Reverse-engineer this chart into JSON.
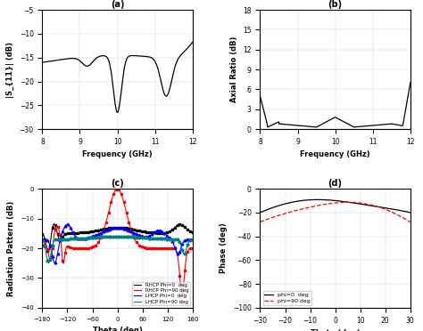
{
  "fig_background": "#ffffff",
  "panel_a": {
    "title": "(a)",
    "xlabel": "Frequency (GHz)",
    "ylabel": "|S_{11}| (dB)",
    "xlim": [
      8,
      12
    ],
    "ylim": [
      -30,
      -5
    ],
    "yticks": [
      -30,
      -25,
      -20,
      -15,
      -10,
      -5
    ],
    "xticks": [
      8,
      9,
      10,
      11,
      12
    ]
  },
  "panel_b": {
    "title": "(b)",
    "xlabel": "Frequency (GHz)",
    "ylabel": "Axial Ratio (dB)",
    "xlim": [
      8,
      12
    ],
    "ylim": [
      0,
      18
    ],
    "yticks": [
      0,
      3,
      6,
      9,
      12,
      15,
      18
    ],
    "xticks": [
      8,
      9,
      10,
      11,
      12
    ]
  },
  "panel_c": {
    "title": "(c)",
    "xlabel": "Theta (deg)",
    "ylabel": "Radiation Pattern (dB)",
    "xlim": [
      -180,
      180
    ],
    "ylim": [
      -40,
      0
    ],
    "yticks": [
      -40,
      -30,
      -20,
      -10,
      0
    ],
    "xticks": [
      -180,
      -120,
      -60,
      0,
      60,
      120,
      180
    ],
    "legend": [
      "RHCP Phi=0  deg",
      "RHCP Phi=90 deg",
      "LHCP Phi=0  deg",
      "LHCP Phi=90 deg"
    ],
    "legend_colors": [
      "black",
      "red",
      "blue",
      "teal"
    ],
    "legend_markers": [
      "s",
      "s",
      "^",
      "o"
    ]
  },
  "panel_d": {
    "title": "(d)",
    "xlabel": "Theta (deg)",
    "ylabel": "Phase (deg)",
    "xlim": [
      -30,
      30
    ],
    "ylim": [
      -100,
      0
    ],
    "yticks": [
      -100,
      -80,
      -60,
      -40,
      -20,
      0
    ],
    "xticks": [
      -30,
      -20,
      -10,
      0,
      10,
      20,
      30
    ],
    "legend": [
      "phi=0  deg",
      "phi=90 deg"
    ],
    "legend_colors": [
      "black",
      "red"
    ]
  }
}
